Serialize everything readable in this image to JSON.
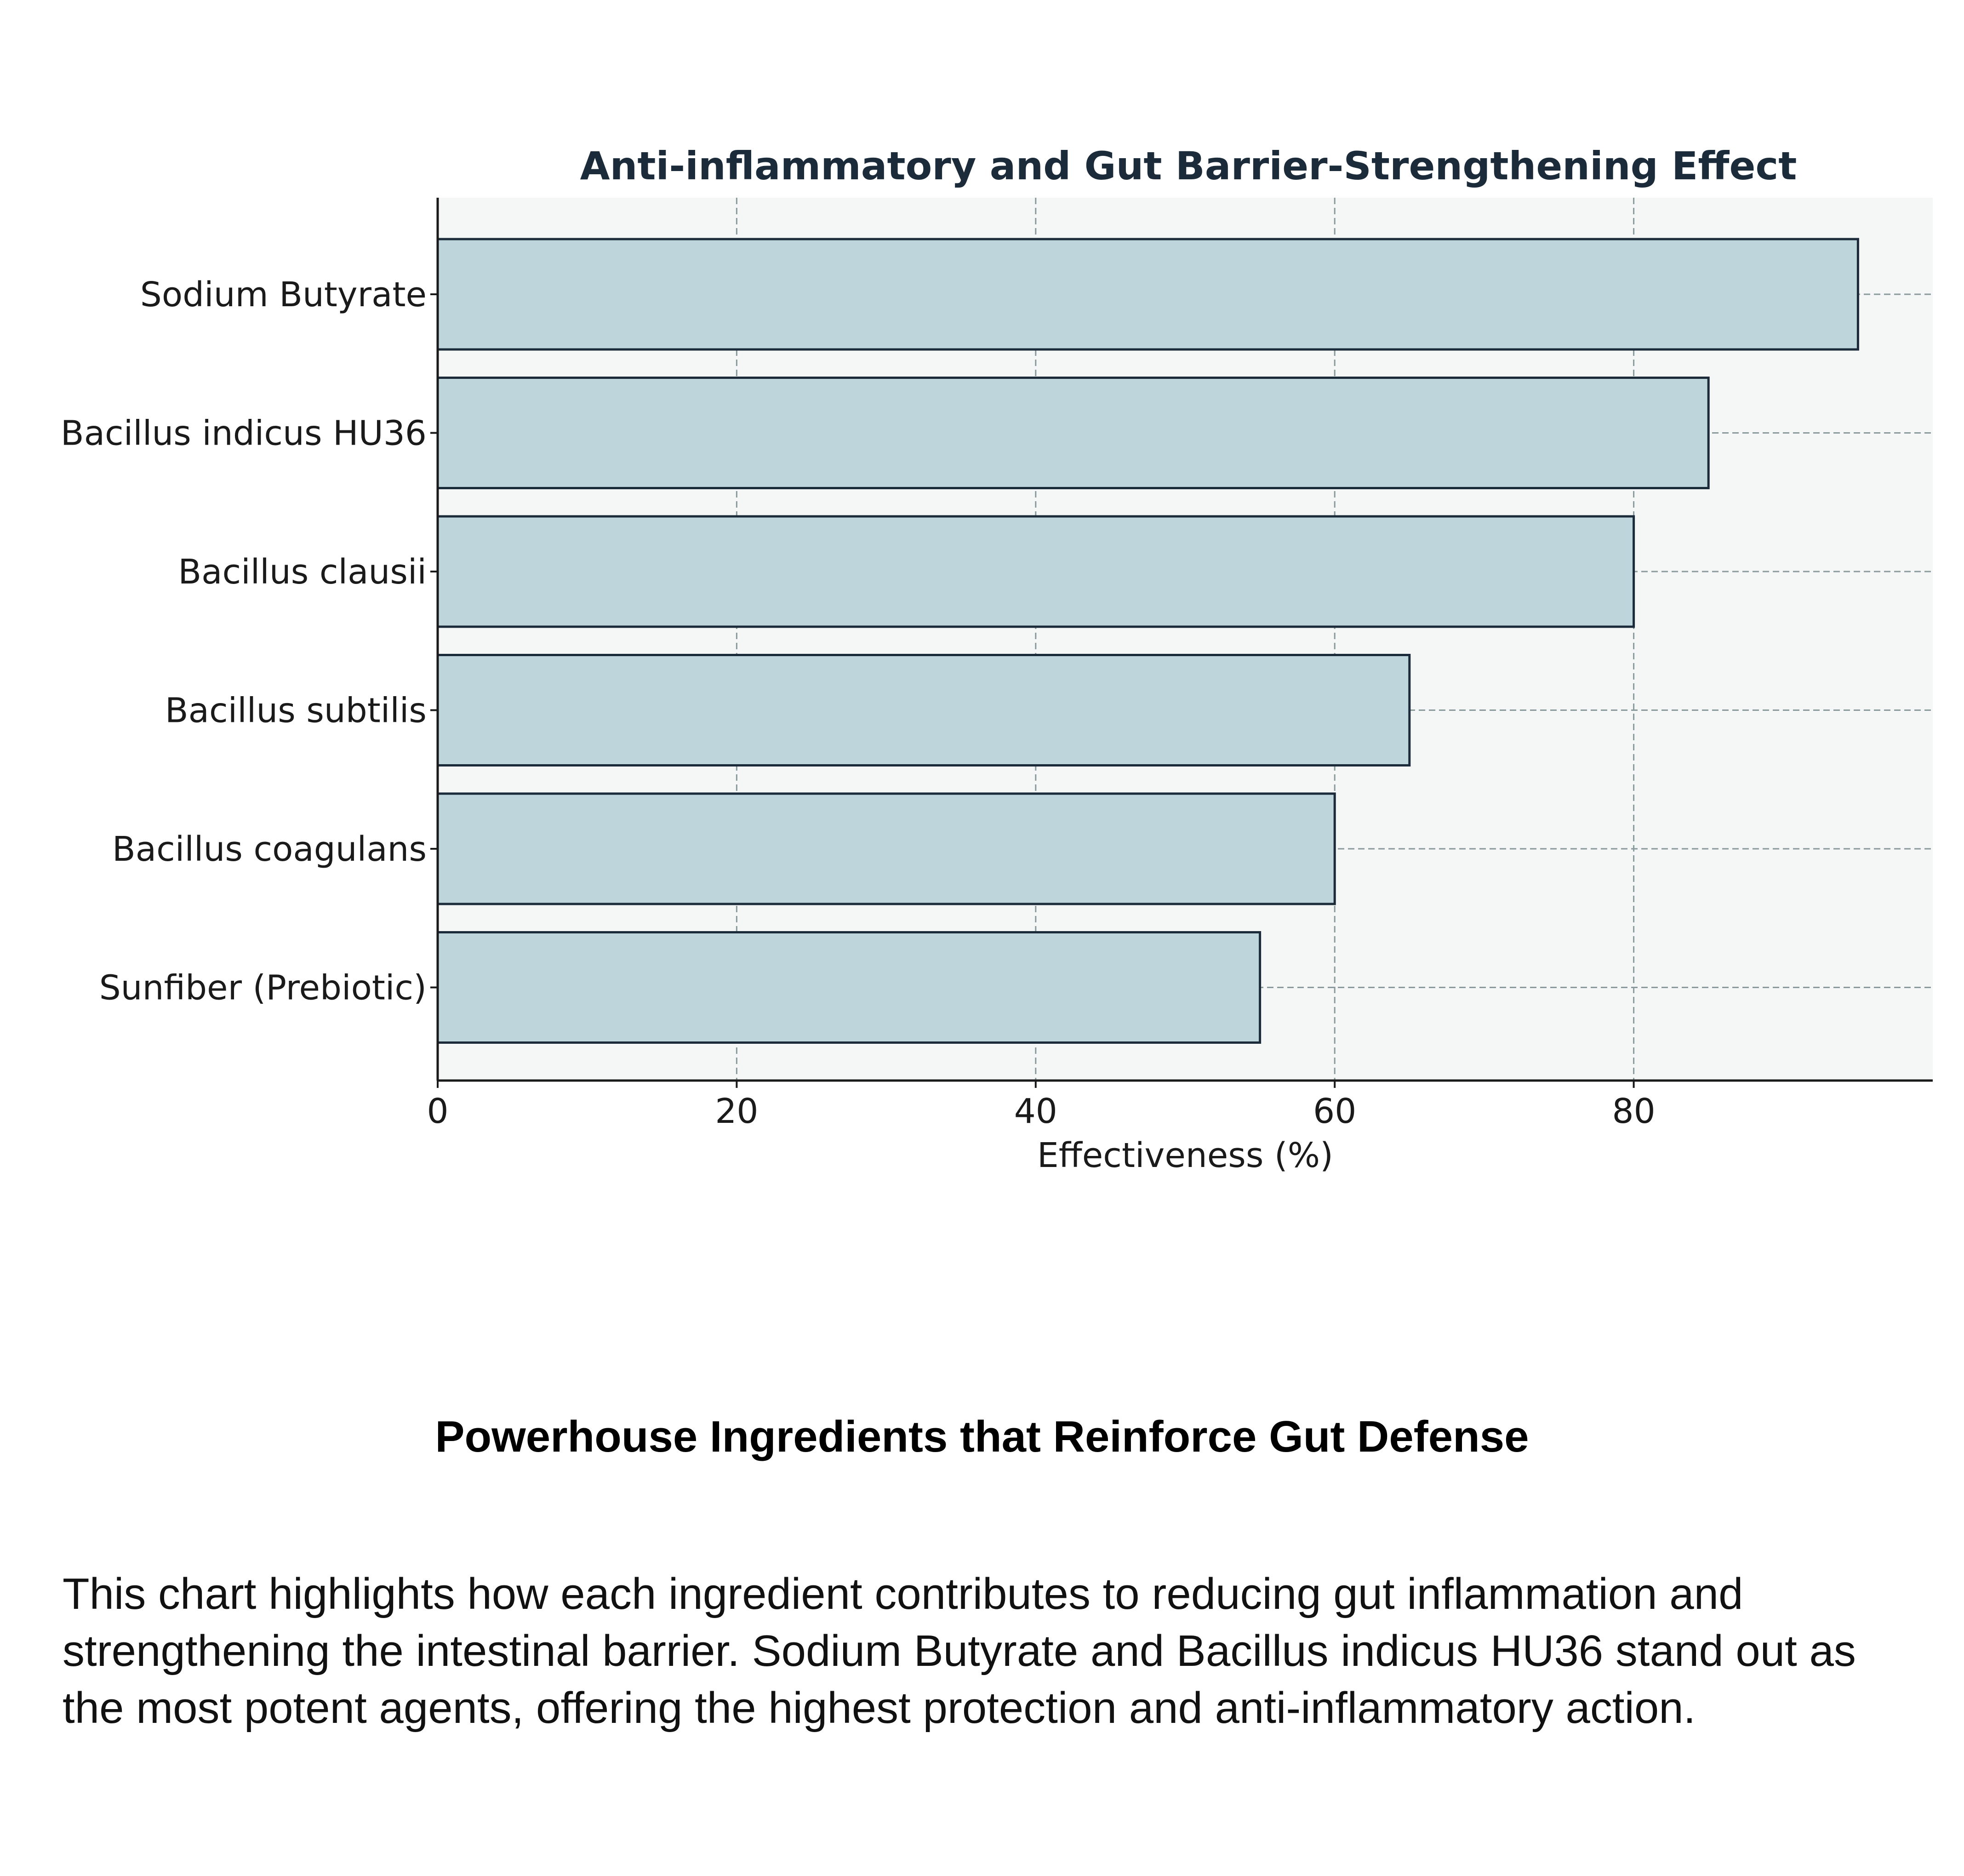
{
  "chart_data": {
    "type": "bar",
    "orientation": "horizontal",
    "title": "Anti-inflammatory and Gut Barrier-Strengthening Effect",
    "categories": [
      "Sodium Butyrate",
      "Bacillus indicus HU36",
      "Bacillus clausii",
      "Bacillus subtilis",
      "Bacillus coagulans",
      "Sunfiber (Prebiotic)"
    ],
    "values": [
      95,
      85,
      80,
      65,
      60,
      55
    ],
    "xlabel": "Effectiveness (%)",
    "ylabel": "",
    "xlim": [
      0,
      100
    ],
    "xticks": [
      0,
      20,
      40,
      60,
      80
    ],
    "grid": true,
    "colors": {
      "bar_fill": "#bed6db",
      "bar_edge": "#1c2b3a",
      "plot_bg": "#f5f7f6",
      "grid": "#8a9a9c",
      "title": "#1c2b3a"
    }
  },
  "section": {
    "heading": "Powerhouse Ingredients that Reinforce Gut Defense",
    "description": "This chart highlights how each ingredient contributes to reducing gut inflammation and strengthening the intestinal barrier. Sodium Butyrate and Bacillus indicus HU36 stand out as the most potent agents, offering the highest protection and anti-inflammatory action."
  }
}
